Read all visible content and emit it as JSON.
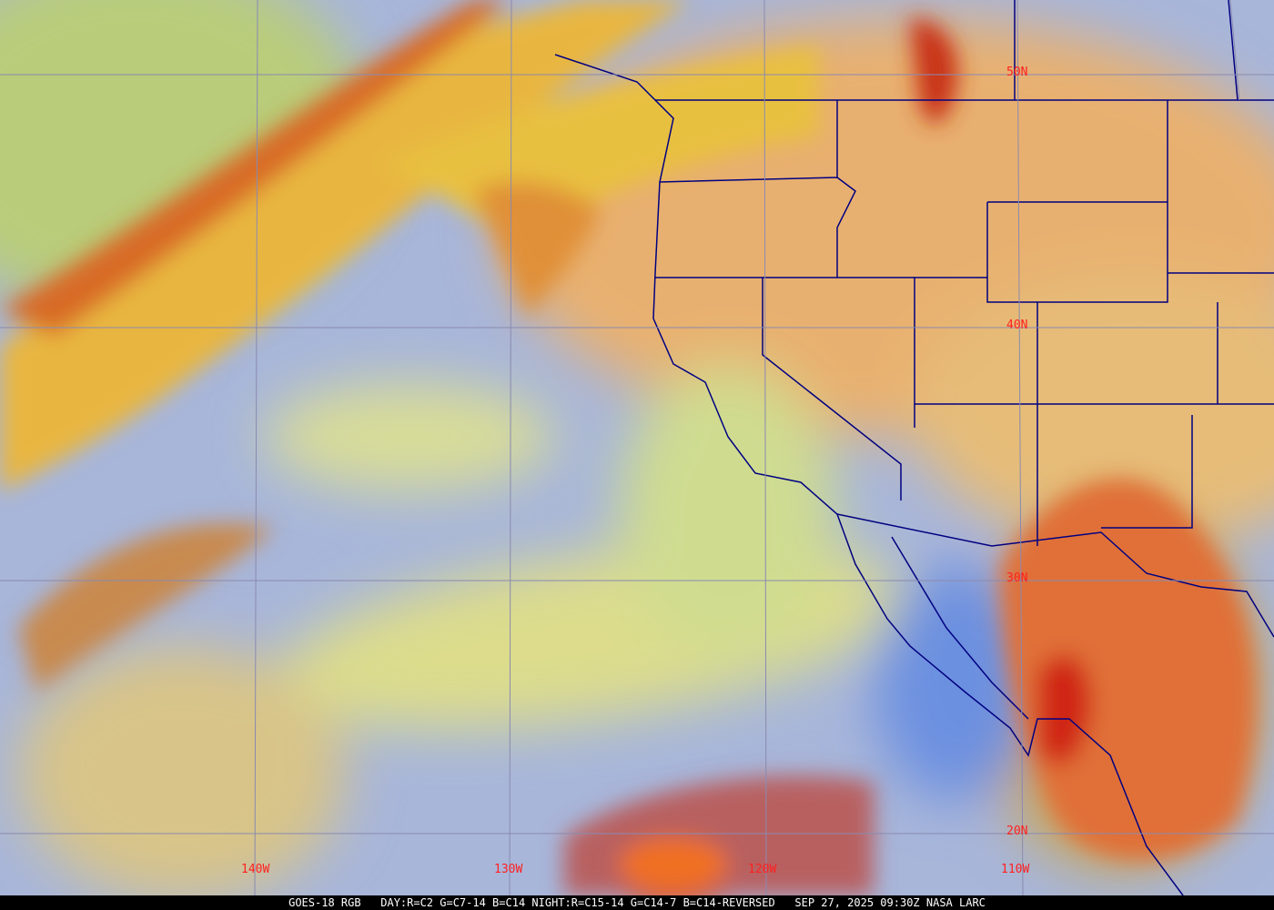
{
  "caption": "GOES-18 RGB   DAY:R=C2 G=C7-14 B=C14 NIGHT:R=C15-14 G=C14-7 B=C14-REVERSED   SEP 27, 2025 09:30Z NASA LARC",
  "latitude_labels": [
    "50N",
    "40N",
    "30N",
    "20N"
  ],
  "longitude_labels": [
    "140W",
    "130W",
    "120W",
    "110W"
  ],
  "colors": {
    "label": "#ff2020",
    "gridline": "#8a8ab0",
    "borders": "#000080",
    "caption_bg": "#000000",
    "caption_text": "#ffffff"
  }
}
